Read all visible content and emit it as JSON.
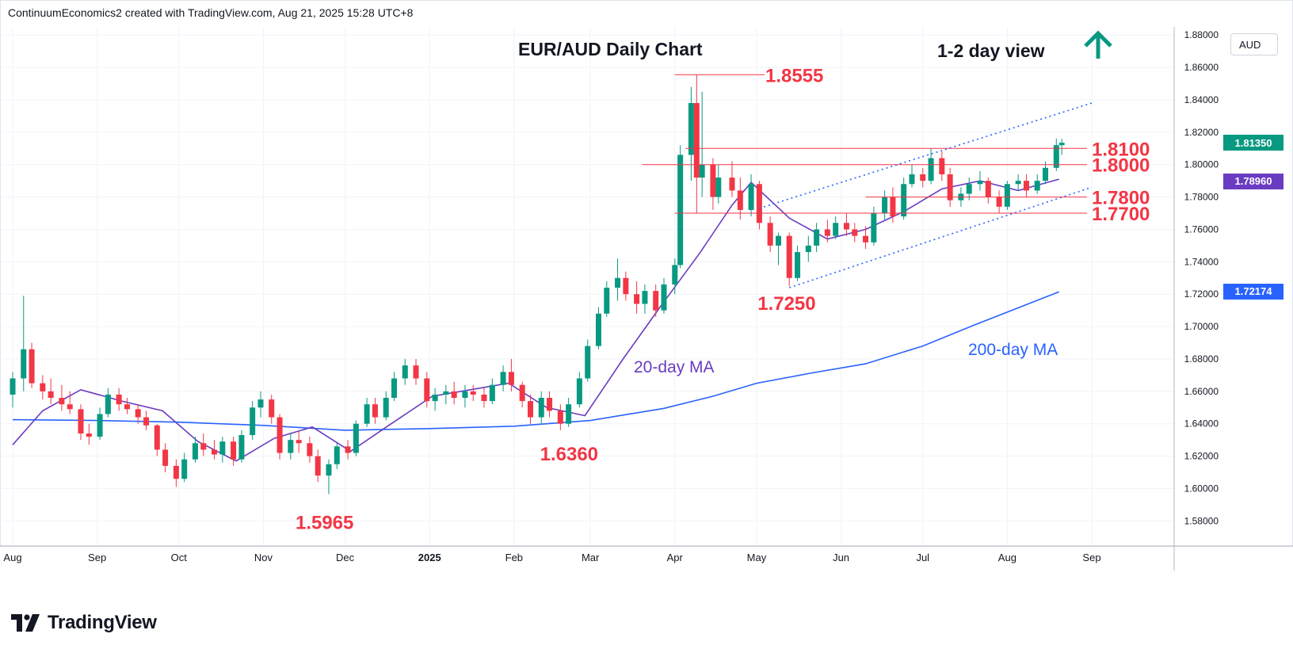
{
  "header": {
    "attribution": "ContinuumEconomics2 created with TradingView.com, Aug 21, 2025 15:28 UTC+8"
  },
  "footer": {
    "brand": "TradingView"
  },
  "axis": {
    "currency": "AUD"
  },
  "price_tags": {
    "last": "1.81350",
    "ma20": "1.78960",
    "ma200": "1.72174"
  },
  "colors": {
    "up": "#089981",
    "down": "#f23645",
    "ma20": "#6a3cc1",
    "ma200": "#2962ff",
    "annotation_red": "#f23645",
    "trend_arrow": "#089981"
  },
  "chart_data": {
    "type": "line",
    "title": "EUR/AUD Daily Chart",
    "subtitle": "1-2 day view",
    "trend_icon": "up-arrow-icon",
    "ylim": [
      1.565,
      1.885
    ],
    "yticks": [
      "1.88000",
      "1.86000",
      "1.84000",
      "1.82000",
      "1.80000",
      "1.78000",
      "1.76000",
      "1.74000",
      "1.72000",
      "1.70000",
      "1.68000",
      "1.66000",
      "1.64000",
      "1.62000",
      "1.60000",
      "1.58000"
    ],
    "xticks": [
      "Aug",
      "Sep",
      "Oct",
      "Nov",
      "Dec",
      "2025",
      "Feb",
      "Mar",
      "Apr",
      "May",
      "Jun",
      "Jul",
      "Aug",
      "Sep"
    ],
    "xlim": [
      "2024-08-01",
      "2025-09-30"
    ],
    "grid": true,
    "series": [
      {
        "name": "20-day MA",
        "x": [
          "2024-08-01",
          "2024-08-12",
          "2024-08-26",
          "2024-09-10",
          "2024-09-25",
          "2024-10-08",
          "2024-10-22",
          "2024-11-05",
          "2024-11-19",
          "2024-12-03",
          "2024-12-17",
          "2025-01-02",
          "2025-01-16",
          "2025-01-30",
          "2025-02-13",
          "2025-02-27",
          "2025-03-13",
          "2025-03-27",
          "2025-04-10",
          "2025-04-22",
          "2025-04-29",
          "2025-05-13",
          "2025-05-27",
          "2025-06-10",
          "2025-06-24",
          "2025-07-08",
          "2025-07-22",
          "2025-08-05",
          "2025-08-20"
        ],
        "values": [
          1.627,
          1.648,
          1.661,
          1.654,
          1.648,
          1.629,
          1.617,
          1.631,
          1.638,
          1.623,
          1.639,
          1.657,
          1.661,
          1.665,
          1.65,
          1.645,
          1.68,
          1.713,
          1.745,
          1.775,
          1.789,
          1.767,
          1.754,
          1.76,
          1.771,
          1.785,
          1.79,
          1.784,
          1.791
        ]
      },
      {
        "name": "200-day MA",
        "x": [
          "2024-08-01",
          "2024-09-01",
          "2024-10-01",
          "2024-11-01",
          "2024-12-01",
          "2025-01-01",
          "2025-02-01",
          "2025-03-01",
          "2025-03-28",
          "2025-04-15",
          "2025-05-01",
          "2025-05-20",
          "2025-06-10",
          "2025-07-01",
          "2025-07-20",
          "2025-08-20"
        ],
        "values": [
          1.6425,
          1.642,
          1.641,
          1.639,
          1.636,
          1.637,
          1.6385,
          1.642,
          1.6495,
          1.657,
          1.665,
          1.671,
          1.677,
          1.688,
          1.701,
          1.7215
        ]
      }
    ],
    "candles_ohlc": [
      [
        "2024-08-01",
        1.658,
        1.672,
        1.65,
        1.668
      ],
      [
        "2024-08-05",
        1.668,
        1.719,
        1.66,
        1.686
      ],
      [
        "2024-08-08",
        1.686,
        1.69,
        1.662,
        1.665
      ],
      [
        "2024-08-12",
        1.665,
        1.67,
        1.655,
        1.66
      ],
      [
        "2024-08-15",
        1.66,
        1.668,
        1.652,
        1.656
      ],
      [
        "2024-08-19",
        1.656,
        1.664,
        1.648,
        1.652
      ],
      [
        "2024-08-22",
        1.652,
        1.66,
        1.646,
        1.649
      ],
      [
        "2024-08-26",
        1.649,
        1.652,
        1.63,
        1.634
      ],
      [
        "2024-08-29",
        1.634,
        1.64,
        1.627,
        1.632
      ],
      [
        "2024-09-02",
        1.632,
        1.65,
        1.63,
        1.646
      ],
      [
        "2024-09-05",
        1.646,
        1.662,
        1.644,
        1.658
      ],
      [
        "2024-09-09",
        1.658,
        1.662,
        1.648,
        1.652
      ],
      [
        "2024-09-12",
        1.652,
        1.656,
        1.646,
        1.649
      ],
      [
        "2024-09-16",
        1.649,
        1.652,
        1.64,
        1.644
      ],
      [
        "2024-09-19",
        1.644,
        1.648,
        1.636,
        1.639
      ],
      [
        "2024-09-23",
        1.639,
        1.64,
        1.62,
        1.624
      ],
      [
        "2024-09-26",
        1.624,
        1.628,
        1.61,
        1.614
      ],
      [
        "2024-09-30",
        1.614,
        1.618,
        1.601,
        1.606
      ],
      [
        "2024-10-03",
        1.606,
        1.622,
        1.604,
        1.618
      ],
      [
        "2024-10-07",
        1.618,
        1.632,
        1.616,
        1.628
      ],
      [
        "2024-10-10",
        1.628,
        1.634,
        1.62,
        1.624
      ],
      [
        "2024-10-14",
        1.624,
        1.63,
        1.618,
        1.621
      ],
      [
        "2024-10-17",
        1.621,
        1.632,
        1.616,
        1.629
      ],
      [
        "2024-10-21",
        1.629,
        1.632,
        1.614,
        1.618
      ],
      [
        "2024-10-24",
        1.618,
        1.636,
        1.616,
        1.633
      ],
      [
        "2024-10-28",
        1.633,
        1.654,
        1.63,
        1.65
      ],
      [
        "2024-10-31",
        1.65,
        1.66,
        1.644,
        1.655
      ],
      [
        "2024-11-04",
        1.655,
        1.658,
        1.64,
        1.644
      ],
      [
        "2024-11-07",
        1.644,
        1.646,
        1.618,
        1.622
      ],
      [
        "2024-11-11",
        1.622,
        1.634,
        1.618,
        1.63
      ],
      [
        "2024-11-14",
        1.63,
        1.636,
        1.622,
        1.628
      ],
      [
        "2024-11-18",
        1.628,
        1.632,
        1.616,
        1.62
      ],
      [
        "2024-11-21",
        1.62,
        1.624,
        1.604,
        1.608
      ],
      [
        "2024-11-25",
        1.608,
        1.618,
        1.5965,
        1.615
      ],
      [
        "2024-11-28",
        1.615,
        1.628,
        1.612,
        1.626
      ],
      [
        "2024-12-02",
        1.626,
        1.63,
        1.618,
        1.622
      ],
      [
        "2024-12-05",
        1.622,
        1.642,
        1.62,
        1.64
      ],
      [
        "2024-12-09",
        1.64,
        1.656,
        1.638,
        1.652
      ],
      [
        "2024-12-12",
        1.652,
        1.656,
        1.64,
        1.644
      ],
      [
        "2024-12-16",
        1.644,
        1.66,
        1.642,
        1.656
      ],
      [
        "2024-12-19",
        1.656,
        1.672,
        1.654,
        1.668
      ],
      [
        "2024-12-23",
        1.668,
        1.68,
        1.664,
        1.676
      ],
      [
        "2024-12-27",
        1.676,
        1.68,
        1.664,
        1.668
      ],
      [
        "2024-12-31",
        1.668,
        1.672,
        1.65,
        1.654
      ],
      [
        "2025-01-03",
        1.654,
        1.662,
        1.648,
        1.658
      ],
      [
        "2025-01-07",
        1.658,
        1.664,
        1.652,
        1.66
      ],
      [
        "2025-01-10",
        1.66,
        1.666,
        1.652,
        1.656
      ],
      [
        "2025-01-14",
        1.656,
        1.664,
        1.65,
        1.66
      ],
      [
        "2025-01-17",
        1.66,
        1.664,
        1.654,
        1.658
      ],
      [
        "2025-01-21",
        1.658,
        1.662,
        1.65,
        1.654
      ],
      [
        "2025-01-24",
        1.654,
        1.668,
        1.652,
        1.664
      ],
      [
        "2025-01-28",
        1.664,
        1.676,
        1.66,
        1.672
      ],
      [
        "2025-01-31",
        1.672,
        1.68,
        1.66,
        1.664
      ],
      [
        "2025-02-04",
        1.664,
        1.666,
        1.65,
        1.654
      ],
      [
        "2025-02-07",
        1.654,
        1.658,
        1.64,
        1.644
      ],
      [
        "2025-02-11",
        1.644,
        1.66,
        1.64,
        1.656
      ],
      [
        "2025-02-14",
        1.656,
        1.66,
        1.644,
        1.648
      ],
      [
        "2025-02-18",
        1.648,
        1.652,
        1.636,
        1.64
      ],
      [
        "2025-02-21",
        1.64,
        1.656,
        1.638,
        1.652
      ],
      [
        "2025-02-25",
        1.652,
        1.672,
        1.65,
        1.668
      ],
      [
        "2025-02-28",
        1.668,
        1.692,
        1.666,
        1.688
      ],
      [
        "2025-03-04",
        1.688,
        1.712,
        1.686,
        1.708
      ],
      [
        "2025-03-07",
        1.708,
        1.728,
        1.706,
        1.724
      ],
      [
        "2025-03-11",
        1.724,
        1.742,
        1.716,
        1.73
      ],
      [
        "2025-03-14",
        1.73,
        1.734,
        1.716,
        1.72
      ],
      [
        "2025-03-18",
        1.72,
        1.728,
        1.708,
        1.714
      ],
      [
        "2025-03-21",
        1.714,
        1.726,
        1.708,
        1.722
      ],
      [
        "2025-03-25",
        1.722,
        1.726,
        1.706,
        1.71
      ],
      [
        "2025-03-28",
        1.71,
        1.73,
        1.708,
        1.726
      ],
      [
        "2025-04-01",
        1.726,
        1.742,
        1.72,
        1.738
      ],
      [
        "2025-04-03",
        1.738,
        1.812,
        1.736,
        1.806
      ],
      [
        "2025-04-07",
        1.806,
        1.848,
        1.79,
        1.838
      ],
      [
        "2025-04-09",
        1.838,
        1.8555,
        1.77,
        1.792
      ],
      [
        "2025-04-11",
        1.792,
        1.845,
        1.78,
        1.8
      ],
      [
        "2025-04-15",
        1.8,
        1.804,
        1.772,
        1.78
      ],
      [
        "2025-04-17",
        1.78,
        1.8,
        1.776,
        1.792
      ],
      [
        "2025-04-22",
        1.792,
        1.802,
        1.78,
        1.784
      ],
      [
        "2025-04-25",
        1.784,
        1.792,
        1.766,
        1.772
      ],
      [
        "2025-04-29",
        1.772,
        1.794,
        1.768,
        1.788
      ],
      [
        "2025-05-02",
        1.788,
        1.79,
        1.76,
        1.764
      ],
      [
        "2025-05-06",
        1.764,
        1.768,
        1.746,
        1.75
      ],
      [
        "2025-05-09",
        1.75,
        1.758,
        1.738,
        1.756
      ],
      [
        "2025-05-13",
        1.756,
        1.758,
        1.725,
        1.73
      ],
      [
        "2025-05-16",
        1.73,
        1.75,
        1.728,
        1.746
      ],
      [
        "2025-05-20",
        1.746,
        1.756,
        1.74,
        1.75
      ],
      [
        "2025-05-23",
        1.75,
        1.764,
        1.746,
        1.76
      ],
      [
        "2025-05-27",
        1.76,
        1.766,
        1.752,
        1.756
      ],
      [
        "2025-05-30",
        1.756,
        1.768,
        1.754,
        1.764
      ],
      [
        "2025-06-03",
        1.764,
        1.77,
        1.756,
        1.76
      ],
      [
        "2025-06-06",
        1.76,
        1.764,
        1.752,
        1.756
      ],
      [
        "2025-06-10",
        1.756,
        1.762,
        1.748,
        1.752
      ],
      [
        "2025-06-13",
        1.752,
        1.774,
        1.75,
        1.77
      ],
      [
        "2025-06-17",
        1.77,
        1.784,
        1.766,
        1.78
      ],
      [
        "2025-06-20",
        1.78,
        1.786,
        1.764,
        1.768
      ],
      [
        "2025-06-24",
        1.768,
        1.792,
        1.766,
        1.788
      ],
      [
        "2025-06-27",
        1.788,
        1.8,
        1.786,
        1.794
      ],
      [
        "2025-07-01",
        1.794,
        1.798,
        1.786,
        1.79
      ],
      [
        "2025-07-04",
        1.79,
        1.81,
        1.788,
        1.804
      ],
      [
        "2025-07-08",
        1.804,
        1.808,
        1.79,
        1.794
      ],
      [
        "2025-07-11",
        1.794,
        1.798,
        1.774,
        1.778
      ],
      [
        "2025-07-15",
        1.778,
        1.786,
        1.774,
        1.782
      ],
      [
        "2025-07-18",
        1.782,
        1.792,
        1.778,
        1.788
      ],
      [
        "2025-07-22",
        1.788,
        1.796,
        1.784,
        1.79
      ],
      [
        "2025-07-25",
        1.79,
        1.792,
        1.776,
        1.78
      ],
      [
        "2025-07-29",
        1.78,
        1.784,
        1.77,
        1.774
      ],
      [
        "2025-08-01",
        1.774,
        1.79,
        1.772,
        1.788
      ],
      [
        "2025-08-05",
        1.788,
        1.794,
        1.784,
        1.79
      ],
      [
        "2025-08-08",
        1.79,
        1.794,
        1.78,
        1.784
      ],
      [
        "2025-08-12",
        1.784,
        1.794,
        1.782,
        1.79
      ],
      [
        "2025-08-15",
        1.79,
        1.802,
        1.788,
        1.798
      ],
      [
        "2025-08-19",
        1.798,
        1.816,
        1.796,
        1.812
      ],
      [
        "2025-08-21",
        1.812,
        1.816,
        1.806,
        1.8135
      ]
    ],
    "levels": [
      {
        "label": "1.8555",
        "value": 1.8555,
        "from": "2025-04-01"
      },
      {
        "label": "1.8100",
        "value": 1.81,
        "from": "2025-04-05"
      },
      {
        "label": "1.8000",
        "value": 1.8,
        "from": "2025-03-20"
      },
      {
        "label": "1.7800",
        "value": 1.78,
        "from": "2025-06-10"
      },
      {
        "label": "1.7700",
        "value": 1.77,
        "from": "2025-04-01"
      }
    ],
    "lows": [
      {
        "label": "1.7250",
        "value": 1.725,
        "x": "2025-05-13"
      },
      {
        "label": "1.6360",
        "value": 1.636,
        "x": "2025-02-21"
      },
      {
        "label": "1.5965",
        "value": 1.5965,
        "x": "2024-11-25"
      }
    ],
    "channel": {
      "upper": {
        "from": [
          "2025-05-02",
          1.773
        ],
        "to": [
          "2025-09-01",
          1.838
        ]
      },
      "lower": {
        "from": [
          "2025-05-13",
          1.724
        ],
        "to": [
          "2025-09-01",
          1.786
        ]
      }
    },
    "ma_labels": {
      "ma20": "20-day MA",
      "ma200": "200-day MA"
    }
  }
}
